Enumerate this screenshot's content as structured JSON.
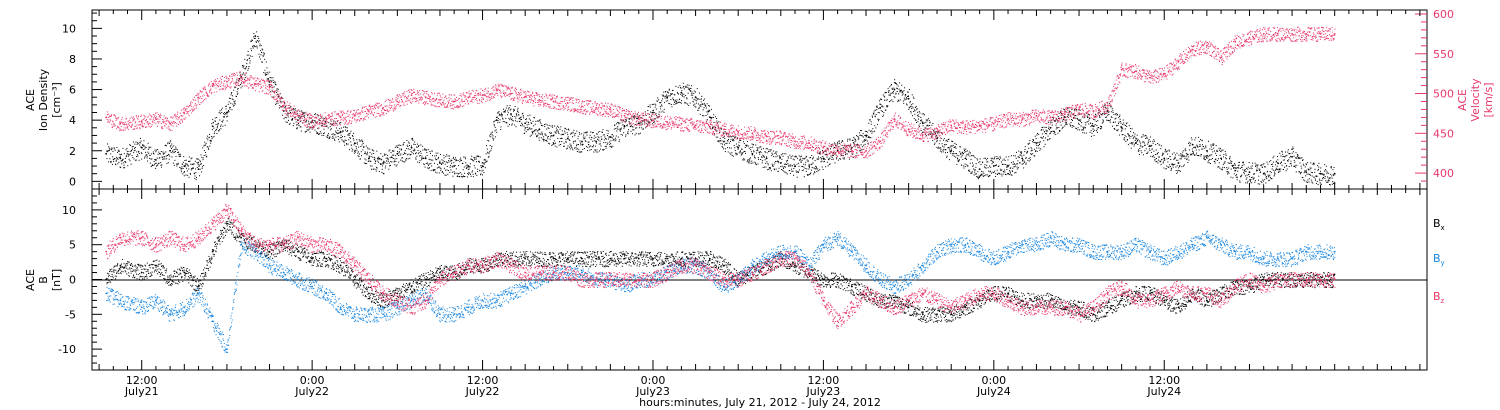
{
  "chart_data": [
    {
      "type": "scatter",
      "panel": "top",
      "ylabel_lines": [
        "ACE",
        "Ion Density",
        "[cm⁻³]"
      ],
      "ylim": [
        -0.5,
        11.2
      ],
      "yticks": [
        0,
        2,
        4,
        6,
        8,
        10
      ],
      "right_axis": {
        "ylabel_lines": [
          "ACE",
          "Velocity",
          "[km/s]"
        ],
        "ylim": [
          380,
          605
        ],
        "yticks": [
          400,
          450,
          500,
          550,
          600
        ],
        "color": "#e8386a"
      },
      "series": [
        {
          "axis": "left",
          "color": "#000000",
          "x_hours": [
            -2.5,
            -1.5,
            0,
            1,
            2,
            3,
            4,
            5,
            6,
            7,
            8,
            9,
            10,
            11,
            12,
            13,
            14,
            15,
            16,
            17,
            18,
            19,
            20,
            21,
            22,
            23,
            24,
            25,
            26,
            27,
            28,
            29,
            30,
            31,
            32,
            33,
            34,
            35,
            36,
            37,
            38,
            39,
            40,
            41,
            42,
            43,
            44,
            45,
            46,
            47,
            48,
            49,
            50,
            51,
            52,
            53,
            54,
            55,
            56,
            57,
            58,
            59,
            60,
            61,
            62,
            63,
            64,
            65,
            66,
            67,
            68,
            69,
            70,
            71,
            72,
            73,
            74,
            75,
            76,
            77,
            78,
            79,
            80,
            81,
            82,
            83,
            84
          ],
          "values": [
            1.8,
            1.5,
            2.2,
            1.4,
            2.0,
            1.0,
            0.8,
            3.6,
            4.5,
            6.8,
            9.5,
            6.5,
            4.6,
            4.0,
            3.9,
            3.6,
            3.2,
            2.5,
            1.5,
            1.2,
            1.8,
            2.2,
            1.5,
            1.2,
            1.0,
            1.0,
            1.0,
            4.0,
            4.4,
            3.8,
            3.4,
            3.0,
            2.8,
            2.6,
            2.6,
            2.9,
            3.6,
            3.8,
            4.5,
            5.5,
            5.8,
            5.5,
            4.2,
            2.6,
            2.2,
            1.8,
            1.5,
            1.2,
            1.0,
            1.0,
            1.5,
            2.0,
            2.2,
            3.0,
            4.8,
            6.0,
            5.4,
            3.8,
            2.8,
            2.0,
            1.5,
            0.8,
            1.0,
            1.0,
            1.5,
            2.5,
            3.5,
            4.2,
            4.0,
            3.6,
            4.6,
            3.5,
            2.5,
            2.3,
            1.5,
            1.2,
            2.4,
            2.0,
            1.5,
            0.7,
            0.6,
            0.5,
            1.2,
            1.6,
            0.6,
            0.5,
            0.5
          ]
        },
        {
          "axis": "right",
          "color": "#e8386a",
          "x_hours": [
            -2.5,
            -1.5,
            0,
            1,
            2,
            3,
            4,
            5,
            6,
            7,
            8,
            9,
            10,
            11,
            12,
            13,
            14,
            15,
            16,
            17,
            18,
            19,
            20,
            21,
            22,
            23,
            24,
            25,
            26,
            27,
            28,
            29,
            30,
            31,
            32,
            33,
            34,
            35,
            36,
            37,
            38,
            39,
            40,
            41,
            42,
            43,
            44,
            45,
            46,
            47,
            48,
            49,
            50,
            51,
            52,
            53,
            54,
            55,
            56,
            57,
            58,
            59,
            60,
            61,
            62,
            63,
            64,
            65,
            66,
            67,
            68,
            69,
            70,
            71,
            72,
            73,
            74,
            75,
            76,
            77,
            78,
            79,
            80,
            81,
            82,
            83,
            84
          ],
          "values": [
            470,
            462,
            465,
            468,
            462,
            475,
            495,
            510,
            515,
            520,
            512,
            508,
            485,
            472,
            465,
            468,
            470,
            472,
            478,
            482,
            490,
            498,
            495,
            492,
            490,
            495,
            498,
            505,
            500,
            496,
            492,
            490,
            488,
            484,
            482,
            480,
            472,
            468,
            466,
            464,
            462,
            460,
            458,
            455,
            452,
            450,
            446,
            445,
            440,
            438,
            432,
            430,
            428,
            428,
            440,
            468,
            455,
            448,
            452,
            460,
            458,
            460,
            462,
            468,
            468,
            472,
            470,
            474,
            480,
            478,
            485,
            530,
            528,
            520,
            525,
            540,
            555,
            560,
            545,
            565,
            570,
            575,
            575,
            575,
            575,
            575,
            575
          ]
        }
      ]
    },
    {
      "type": "scatter",
      "panel": "bottom",
      "ylabel_lines": [
        "ACE",
        "B",
        "[nT]"
      ],
      "ylim": [
        -13,
        13
      ],
      "yticks": [
        -10,
        -5,
        0,
        5,
        10
      ],
      "zero_line": true,
      "legend_position": "right",
      "series": [
        {
          "name": "Bx",
          "name_main": "B",
          "name_sub": "x",
          "color": "#000000",
          "x_hours": [
            -2.5,
            -1.5,
            0,
            1,
            2,
            3,
            4,
            5,
            6,
            7,
            8,
            9,
            10,
            11,
            12,
            13,
            14,
            15,
            16,
            17,
            18,
            19,
            20,
            21,
            22,
            23,
            24,
            25,
            26,
            27,
            28,
            29,
            30,
            31,
            32,
            33,
            34,
            35,
            36,
            37,
            38,
            39,
            40,
            41,
            42,
            43,
            44,
            45,
            46,
            47,
            48,
            49,
            50,
            51,
            52,
            53,
            54,
            55,
            56,
            57,
            58,
            59,
            60,
            61,
            62,
            63,
            64,
            65,
            66,
            67,
            68,
            69,
            70,
            71,
            72,
            73,
            74,
            75,
            76,
            77,
            78,
            79,
            80,
            81,
            82,
            83,
            84
          ],
          "values": [
            0,
            2,
            1,
            2,
            0,
            1,
            -1,
            4,
            8,
            6,
            5,
            4,
            5,
            4,
            3,
            3,
            2,
            0,
            -2,
            -3,
            -2,
            -1,
            0,
            1,
            1,
            2,
            2,
            3,
            3,
            3,
            3,
            3,
            3,
            3,
            3,
            3,
            3,
            3,
            3,
            3,
            3,
            3,
            3,
            2,
            0,
            1,
            2,
            3,
            2,
            1,
            0,
            0,
            -1,
            -2,
            -3,
            -3,
            -4,
            -5,
            -5,
            -5,
            -4,
            -3,
            -2,
            -2,
            -3,
            -3,
            -3,
            -4,
            -4,
            -5,
            -4,
            -3,
            -2,
            -2,
            -3,
            -4,
            -2,
            -3,
            -2,
            -1,
            -1,
            0,
            0,
            0,
            0,
            0,
            0
          ]
        },
        {
          "name": "By",
          "name_main": "B",
          "name_sub": "y",
          "color": "#1a87e0",
          "x_hours": [
            -2.5,
            -1.5,
            0,
            1,
            2,
            3,
            4,
            5,
            6,
            7,
            8,
            9,
            10,
            11,
            12,
            13,
            14,
            15,
            16,
            17,
            18,
            19,
            20,
            21,
            22,
            23,
            24,
            25,
            26,
            27,
            28,
            29,
            30,
            31,
            32,
            33,
            34,
            35,
            36,
            37,
            38,
            39,
            40,
            41,
            42,
            43,
            44,
            45,
            46,
            47,
            48,
            49,
            50,
            51,
            52,
            53,
            54,
            55,
            56,
            57,
            58,
            59,
            60,
            61,
            62,
            63,
            64,
            65,
            66,
            67,
            68,
            69,
            70,
            71,
            72,
            73,
            74,
            75,
            76,
            77,
            78,
            79,
            80,
            81,
            82,
            83,
            84
          ],
          "values": [
            -2,
            -3,
            -4,
            -3,
            -5,
            -4,
            -2,
            -6,
            -10,
            5,
            4,
            2,
            1,
            0,
            -1,
            -2,
            -4,
            -5,
            -5,
            -5,
            -4,
            -3,
            -2,
            -5,
            -5,
            -4,
            -3,
            -3,
            -2,
            -1,
            0,
            1,
            1,
            1,
            0,
            0,
            -1,
            0,
            0,
            1,
            2,
            2,
            1,
            -1,
            0,
            2,
            3,
            4,
            4,
            2,
            5,
            6,
            4,
            2,
            0,
            -1,
            0,
            2,
            4,
            5,
            5,
            4,
            3,
            4,
            5,
            5,
            6,
            5,
            5,
            4,
            4,
            4,
            5,
            4,
            3,
            4,
            5,
            6,
            5,
            4,
            4,
            3,
            3,
            3,
            4,
            4,
            4
          ]
        },
        {
          "name": "Bz",
          "name_main": "B",
          "name_sub": "z",
          "color": "#e8386a",
          "x_hours": [
            -2.5,
            -1.5,
            0,
            1,
            2,
            3,
            4,
            5,
            6,
            7,
            8,
            9,
            10,
            11,
            12,
            13,
            14,
            15,
            16,
            17,
            18,
            19,
            20,
            21,
            22,
            23,
            24,
            25,
            26,
            27,
            28,
            29,
            30,
            31,
            32,
            33,
            34,
            35,
            36,
            37,
            38,
            39,
            40,
            41,
            42,
            43,
            44,
            45,
            46,
            47,
            48,
            49,
            50,
            51,
            52,
            53,
            54,
            55,
            56,
            57,
            58,
            59,
            60,
            61,
            62,
            63,
            64,
            65,
            66,
            67,
            68,
            69,
            70,
            71,
            72,
            73,
            74,
            75,
            76,
            77,
            78,
            79,
            80,
            81,
            82,
            83,
            84
          ],
          "values": [
            4,
            6,
            6,
            5,
            6,
            5,
            6,
            8,
            10,
            7,
            5,
            5,
            5,
            6,
            5,
            5,
            4,
            2,
            0,
            -2,
            -3,
            -4,
            -3,
            0,
            1,
            2,
            2,
            3,
            2,
            1,
            1,
            1,
            1,
            0,
            0,
            0,
            0,
            0,
            0,
            1,
            2,
            2,
            1,
            0,
            0,
            1,
            2,
            3,
            3,
            1,
            -3,
            -6,
            -4,
            -2,
            -3,
            -4,
            -3,
            -2,
            -3,
            -4,
            -3,
            -2,
            -2,
            -3,
            -4,
            -4,
            -4,
            -4,
            -5,
            -4,
            -2,
            -1,
            -3,
            -3,
            -2,
            -1,
            -2,
            -2,
            -3,
            -1,
            0,
            -1,
            0,
            0,
            0,
            0,
            0
          ]
        }
      ]
    }
  ],
  "x_axis": {
    "range_hours": [
      -3.5,
      90.5
    ],
    "minor_tick_step_hours": 1,
    "major_ticks": [
      {
        "hours": 0,
        "time": "12:00",
        "day": "July21"
      },
      {
        "hours": 12,
        "time": "0:00",
        "day": "July22"
      },
      {
        "hours": 24,
        "time": "12:00",
        "day": "July22"
      },
      {
        "hours": 36,
        "time": "0:00",
        "day": "July23"
      },
      {
        "hours": 48,
        "time": "12:00",
        "day": "July23"
      },
      {
        "hours": 60,
        "time": "0:00",
        "day": "July24"
      },
      {
        "hours": 72,
        "time": "12:00",
        "day": "July24"
      }
    ],
    "title": "hours:minutes, July 21, 2012 - July 24, 2012"
  }
}
